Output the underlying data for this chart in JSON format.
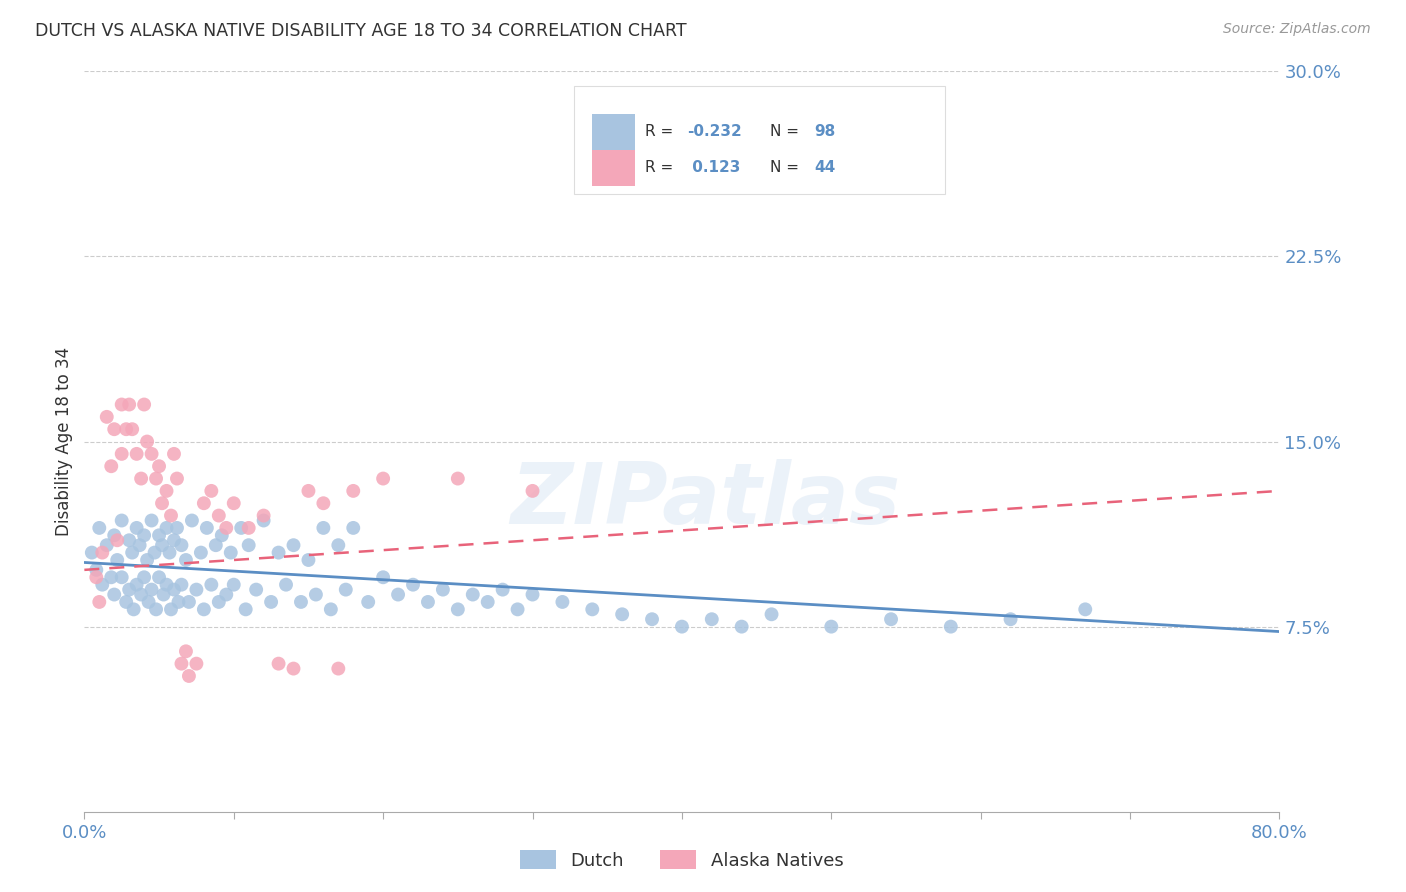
{
  "title": "DUTCH VS ALASKA NATIVE DISABILITY AGE 18 TO 34 CORRELATION CHART",
  "source": "Source: ZipAtlas.com",
  "ylabel": "Disability Age 18 to 34",
  "xlim": [
    0.0,
    0.8
  ],
  "ylim": [
    0.0,
    0.3
  ],
  "yticks": [
    0.075,
    0.15,
    0.225,
    0.3
  ],
  "ytick_labels": [
    "7.5%",
    "15.0%",
    "22.5%",
    "30.0%"
  ],
  "xtick_positions": [
    0.0,
    0.1,
    0.2,
    0.3,
    0.4,
    0.5,
    0.6,
    0.7,
    0.8
  ],
  "watermark": "ZIPatlas",
  "dutch_color": "#a8c4e0",
  "alaska_color": "#f4a7b9",
  "dutch_trend_color": "#5b8ec4",
  "alaska_trend_color": "#e8637a",
  "legend_text_color": "#5b8ec4",
  "bg_color": "#ffffff",
  "title_color": "#333333",
  "grid_color": "#cccccc",
  "dutch_scatter_x": [
    0.005,
    0.008,
    0.01,
    0.012,
    0.015,
    0.018,
    0.02,
    0.02,
    0.022,
    0.025,
    0.025,
    0.028,
    0.03,
    0.03,
    0.032,
    0.033,
    0.035,
    0.035,
    0.037,
    0.038,
    0.04,
    0.04,
    0.042,
    0.043,
    0.045,
    0.045,
    0.047,
    0.048,
    0.05,
    0.05,
    0.052,
    0.053,
    0.055,
    0.055,
    0.057,
    0.058,
    0.06,
    0.06,
    0.062,
    0.063,
    0.065,
    0.065,
    0.068,
    0.07,
    0.072,
    0.075,
    0.078,
    0.08,
    0.082,
    0.085,
    0.088,
    0.09,
    0.092,
    0.095,
    0.098,
    0.1,
    0.105,
    0.108,
    0.11,
    0.115,
    0.12,
    0.125,
    0.13,
    0.135,
    0.14,
    0.145,
    0.15,
    0.155,
    0.16,
    0.165,
    0.17,
    0.175,
    0.18,
    0.19,
    0.2,
    0.21,
    0.22,
    0.23,
    0.24,
    0.25,
    0.26,
    0.27,
    0.28,
    0.29,
    0.3,
    0.32,
    0.34,
    0.36,
    0.38,
    0.4,
    0.42,
    0.44,
    0.46,
    0.5,
    0.54,
    0.58,
    0.62,
    0.67
  ],
  "dutch_scatter_y": [
    0.105,
    0.098,
    0.115,
    0.092,
    0.108,
    0.095,
    0.112,
    0.088,
    0.102,
    0.118,
    0.095,
    0.085,
    0.11,
    0.09,
    0.105,
    0.082,
    0.115,
    0.092,
    0.108,
    0.088,
    0.112,
    0.095,
    0.102,
    0.085,
    0.118,
    0.09,
    0.105,
    0.082,
    0.112,
    0.095,
    0.108,
    0.088,
    0.115,
    0.092,
    0.105,
    0.082,
    0.11,
    0.09,
    0.115,
    0.085,
    0.108,
    0.092,
    0.102,
    0.085,
    0.118,
    0.09,
    0.105,
    0.082,
    0.115,
    0.092,
    0.108,
    0.085,
    0.112,
    0.088,
    0.105,
    0.092,
    0.115,
    0.082,
    0.108,
    0.09,
    0.118,
    0.085,
    0.105,
    0.092,
    0.108,
    0.085,
    0.102,
    0.088,
    0.115,
    0.082,
    0.108,
    0.09,
    0.115,
    0.085,
    0.095,
    0.088,
    0.092,
    0.085,
    0.09,
    0.082,
    0.088,
    0.085,
    0.09,
    0.082,
    0.088,
    0.085,
    0.082,
    0.08,
    0.078,
    0.075,
    0.078,
    0.075,
    0.08,
    0.075,
    0.078,
    0.075,
    0.078,
    0.082
  ],
  "alaska_scatter_x": [
    0.008,
    0.01,
    0.012,
    0.015,
    0.018,
    0.02,
    0.022,
    0.025,
    0.025,
    0.028,
    0.03,
    0.032,
    0.035,
    0.038,
    0.04,
    0.042,
    0.045,
    0.048,
    0.05,
    0.052,
    0.055,
    0.058,
    0.06,
    0.062,
    0.065,
    0.068,
    0.07,
    0.075,
    0.08,
    0.085,
    0.09,
    0.095,
    0.1,
    0.11,
    0.12,
    0.13,
    0.14,
    0.15,
    0.16,
    0.17,
    0.18,
    0.2,
    0.25,
    0.3
  ],
  "alaska_scatter_y": [
    0.095,
    0.085,
    0.105,
    0.16,
    0.14,
    0.155,
    0.11,
    0.165,
    0.145,
    0.155,
    0.165,
    0.155,
    0.145,
    0.135,
    0.165,
    0.15,
    0.145,
    0.135,
    0.14,
    0.125,
    0.13,
    0.12,
    0.145,
    0.135,
    0.06,
    0.065,
    0.055,
    0.06,
    0.125,
    0.13,
    0.12,
    0.115,
    0.125,
    0.115,
    0.12,
    0.06,
    0.058,
    0.13,
    0.125,
    0.058,
    0.13,
    0.135,
    0.135,
    0.13
  ],
  "dutch_trend_x0": 0.0,
  "dutch_trend_y0": 0.101,
  "dutch_trend_x1": 0.8,
  "dutch_trend_y1": 0.073,
  "alaska_trend_x0": 0.0,
  "alaska_trend_y0": 0.098,
  "alaska_trend_x1": 0.8,
  "alaska_trend_y1": 0.13
}
